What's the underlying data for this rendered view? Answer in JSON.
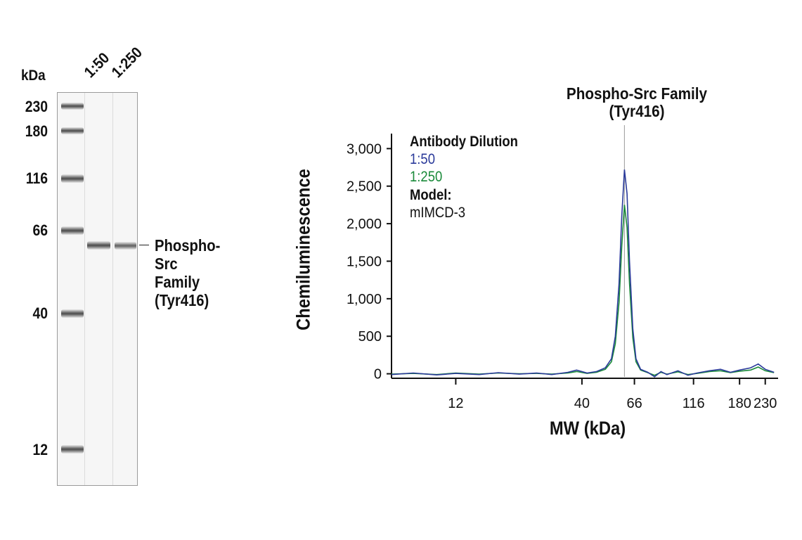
{
  "gel": {
    "unit_label": "kDa",
    "lanes": [
      "1:50",
      "1:250"
    ],
    "ladder": [
      {
        "label": "230",
        "value": 230
      },
      {
        "label": "180",
        "value": 180
      },
      {
        "label": "116",
        "value": 116
      },
      {
        "label": "66",
        "value": 66
      },
      {
        "label": "40",
        "value": 40
      },
      {
        "label": "12",
        "value": 12
      }
    ],
    "target_label_lines": [
      "Phospho-Src",
      "Family",
      "(Tyr416)"
    ],
    "target_mw": 60
  },
  "chart_data": {
    "type": "line",
    "title_lines": [
      "Phospho-Src Family",
      "(Tyr416)"
    ],
    "xlabel": "MW (kDa)",
    "ylabel": "Chemiluminescence",
    "x_scale": "log",
    "x_ticks": [
      {
        "label": "12",
        "value": 12
      },
      {
        "label": "40",
        "value": 40
      },
      {
        "label": "66",
        "value": 66
      },
      {
        "label": "116",
        "value": 116
      },
      {
        "label": "180",
        "value": 180
      },
      {
        "label": "230",
        "value": 230
      }
    ],
    "y_ticks": [
      {
        "label": "0",
        "value": 0
      },
      {
        "label": "500",
        "value": 500
      },
      {
        "label": "1,000",
        "value": 1000
      },
      {
        "label": "1,500",
        "value": 1500
      },
      {
        "label": "2,000",
        "value": 2000
      },
      {
        "label": "2,500",
        "value": 2500
      },
      {
        "label": "3,000",
        "value": 3000
      }
    ],
    "xlim": [
      6.5,
      260
    ],
    "ylim": [
      -60,
      3200
    ],
    "peak_marker_x": 60,
    "grid": false,
    "legend": {
      "heading": "Antibody Dilution",
      "model_heading": "Model:",
      "model_value": "mIMCD-3"
    },
    "series": [
      {
        "name": "1:50",
        "color": "#2a3a9a",
        "points": [
          [
            6.5,
            -10
          ],
          [
            8,
            10
          ],
          [
            10,
            -15
          ],
          [
            12,
            5
          ],
          [
            15,
            -10
          ],
          [
            18,
            15
          ],
          [
            22,
            -5
          ],
          [
            26,
            10
          ],
          [
            30,
            -10
          ],
          [
            35,
            20
          ],
          [
            38,
            50
          ],
          [
            42,
            10
          ],
          [
            46,
            30
          ],
          [
            50,
            80
          ],
          [
            53,
            200
          ],
          [
            55,
            500
          ],
          [
            57,
            1200
          ],
          [
            58.5,
            2100
          ],
          [
            60,
            2720
          ],
          [
            61.5,
            2400
          ],
          [
            63,
            1500
          ],
          [
            65,
            600
          ],
          [
            67,
            200
          ],
          [
            70,
            60
          ],
          [
            75,
            20
          ],
          [
            80,
            -40
          ],
          [
            85,
            30
          ],
          [
            90,
            -10
          ],
          [
            100,
            40
          ],
          [
            110,
            -20
          ],
          [
            120,
            10
          ],
          [
            135,
            40
          ],
          [
            150,
            60
          ],
          [
            165,
            20
          ],
          [
            180,
            50
          ],
          [
            200,
            80
          ],
          [
            215,
            130
          ],
          [
            230,
            60
          ],
          [
            250,
            20
          ]
        ]
      },
      {
        "name": "1:250",
        "color": "#1a8a3a",
        "points": [
          [
            6.5,
            -5
          ],
          [
            8,
            5
          ],
          [
            10,
            -10
          ],
          [
            12,
            10
          ],
          [
            15,
            -5
          ],
          [
            18,
            10
          ],
          [
            22,
            0
          ],
          [
            26,
            5
          ],
          [
            30,
            -5
          ],
          [
            35,
            10
          ],
          [
            38,
            30
          ],
          [
            42,
            5
          ],
          [
            46,
            20
          ],
          [
            50,
            60
          ],
          [
            53,
            160
          ],
          [
            55,
            400
          ],
          [
            57,
            950
          ],
          [
            58.5,
            1700
          ],
          [
            60,
            2250
          ],
          [
            61.5,
            1950
          ],
          [
            63,
            1200
          ],
          [
            65,
            480
          ],
          [
            67,
            160
          ],
          [
            70,
            50
          ],
          [
            75,
            15
          ],
          [
            80,
            -20
          ],
          [
            85,
            20
          ],
          [
            90,
            -5
          ],
          [
            100,
            25
          ],
          [
            110,
            -10
          ],
          [
            120,
            5
          ],
          [
            135,
            30
          ],
          [
            150,
            40
          ],
          [
            165,
            15
          ],
          [
            180,
            35
          ],
          [
            200,
            50
          ],
          [
            215,
            90
          ],
          [
            230,
            40
          ],
          [
            250,
            15
          ]
        ]
      }
    ]
  }
}
